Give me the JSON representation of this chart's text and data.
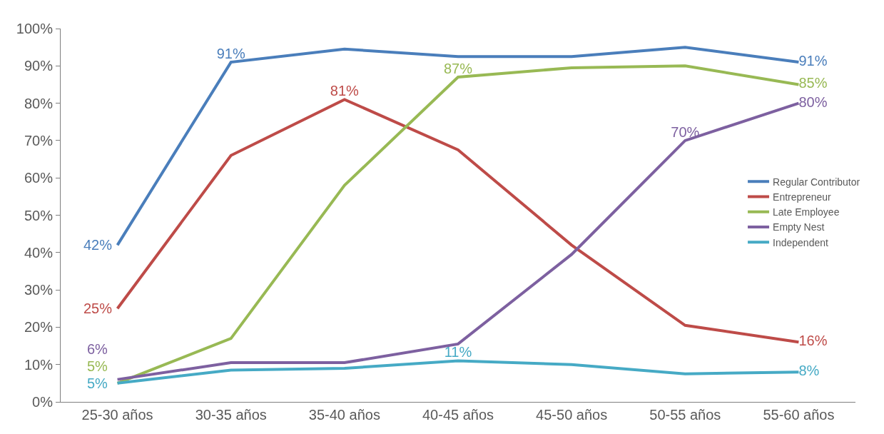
{
  "chart_data": {
    "type": "line",
    "categories": [
      "25-30 años",
      "30-35 años",
      "35-40 años",
      "40-45 años",
      "45-50 años",
      "50-55 años",
      "55-60 años"
    ],
    "ylim": [
      0,
      100
    ],
    "yticks": [
      {
        "value": 0,
        "label": "0%"
      },
      {
        "value": 10,
        "label": "10%"
      },
      {
        "value": 20,
        "label": "20%"
      },
      {
        "value": 30,
        "label": "30%"
      },
      {
        "value": 40,
        "label": "40%"
      },
      {
        "value": 50,
        "label": "50%"
      },
      {
        "value": 60,
        "label": "60%"
      },
      {
        "value": 70,
        "label": "70%"
      },
      {
        "value": 80,
        "label": "80%"
      },
      {
        "value": 90,
        "label": "90%"
      },
      {
        "value": 100,
        "label": "100%"
      }
    ],
    "legend": "right",
    "marker": "none",
    "line_style": "solid",
    "series": [
      {
        "name": "Regular Contributor",
        "color": "#4a7ebb",
        "values": [
          42,
          91,
          94.5,
          92.5,
          92.5,
          95,
          91
        ],
        "value_labels": [
          "42%",
          "91%",
          null,
          null,
          null,
          null,
          "91%"
        ]
      },
      {
        "name": "Entrepreneur",
        "color": "#be4b48",
        "values": [
          25,
          66,
          81,
          67.5,
          42,
          20.5,
          16
        ],
        "value_labels": [
          "25%",
          null,
          "81%",
          null,
          null,
          null,
          "16%"
        ]
      },
      {
        "name": "Late Employee",
        "color": "#98b954",
        "values": [
          5,
          17,
          58,
          87,
          89.5,
          90,
          85
        ],
        "value_labels": [
          "5%",
          null,
          null,
          "87%",
          null,
          null,
          "85%"
        ]
      },
      {
        "name": "Empty Nest",
        "color": "#7d60a0",
        "values": [
          6,
          10.5,
          10.5,
          15.5,
          39.5,
          70,
          80
        ],
        "value_labels": [
          "6%",
          null,
          null,
          null,
          null,
          "70%",
          "80%"
        ]
      },
      {
        "name": "Independent",
        "color": "#46aac5",
        "values": [
          5,
          8.5,
          9,
          11,
          10,
          7.5,
          8
        ],
        "value_labels": [
          "5%",
          null,
          null,
          "11%",
          null,
          null,
          "8%"
        ]
      }
    ]
  }
}
